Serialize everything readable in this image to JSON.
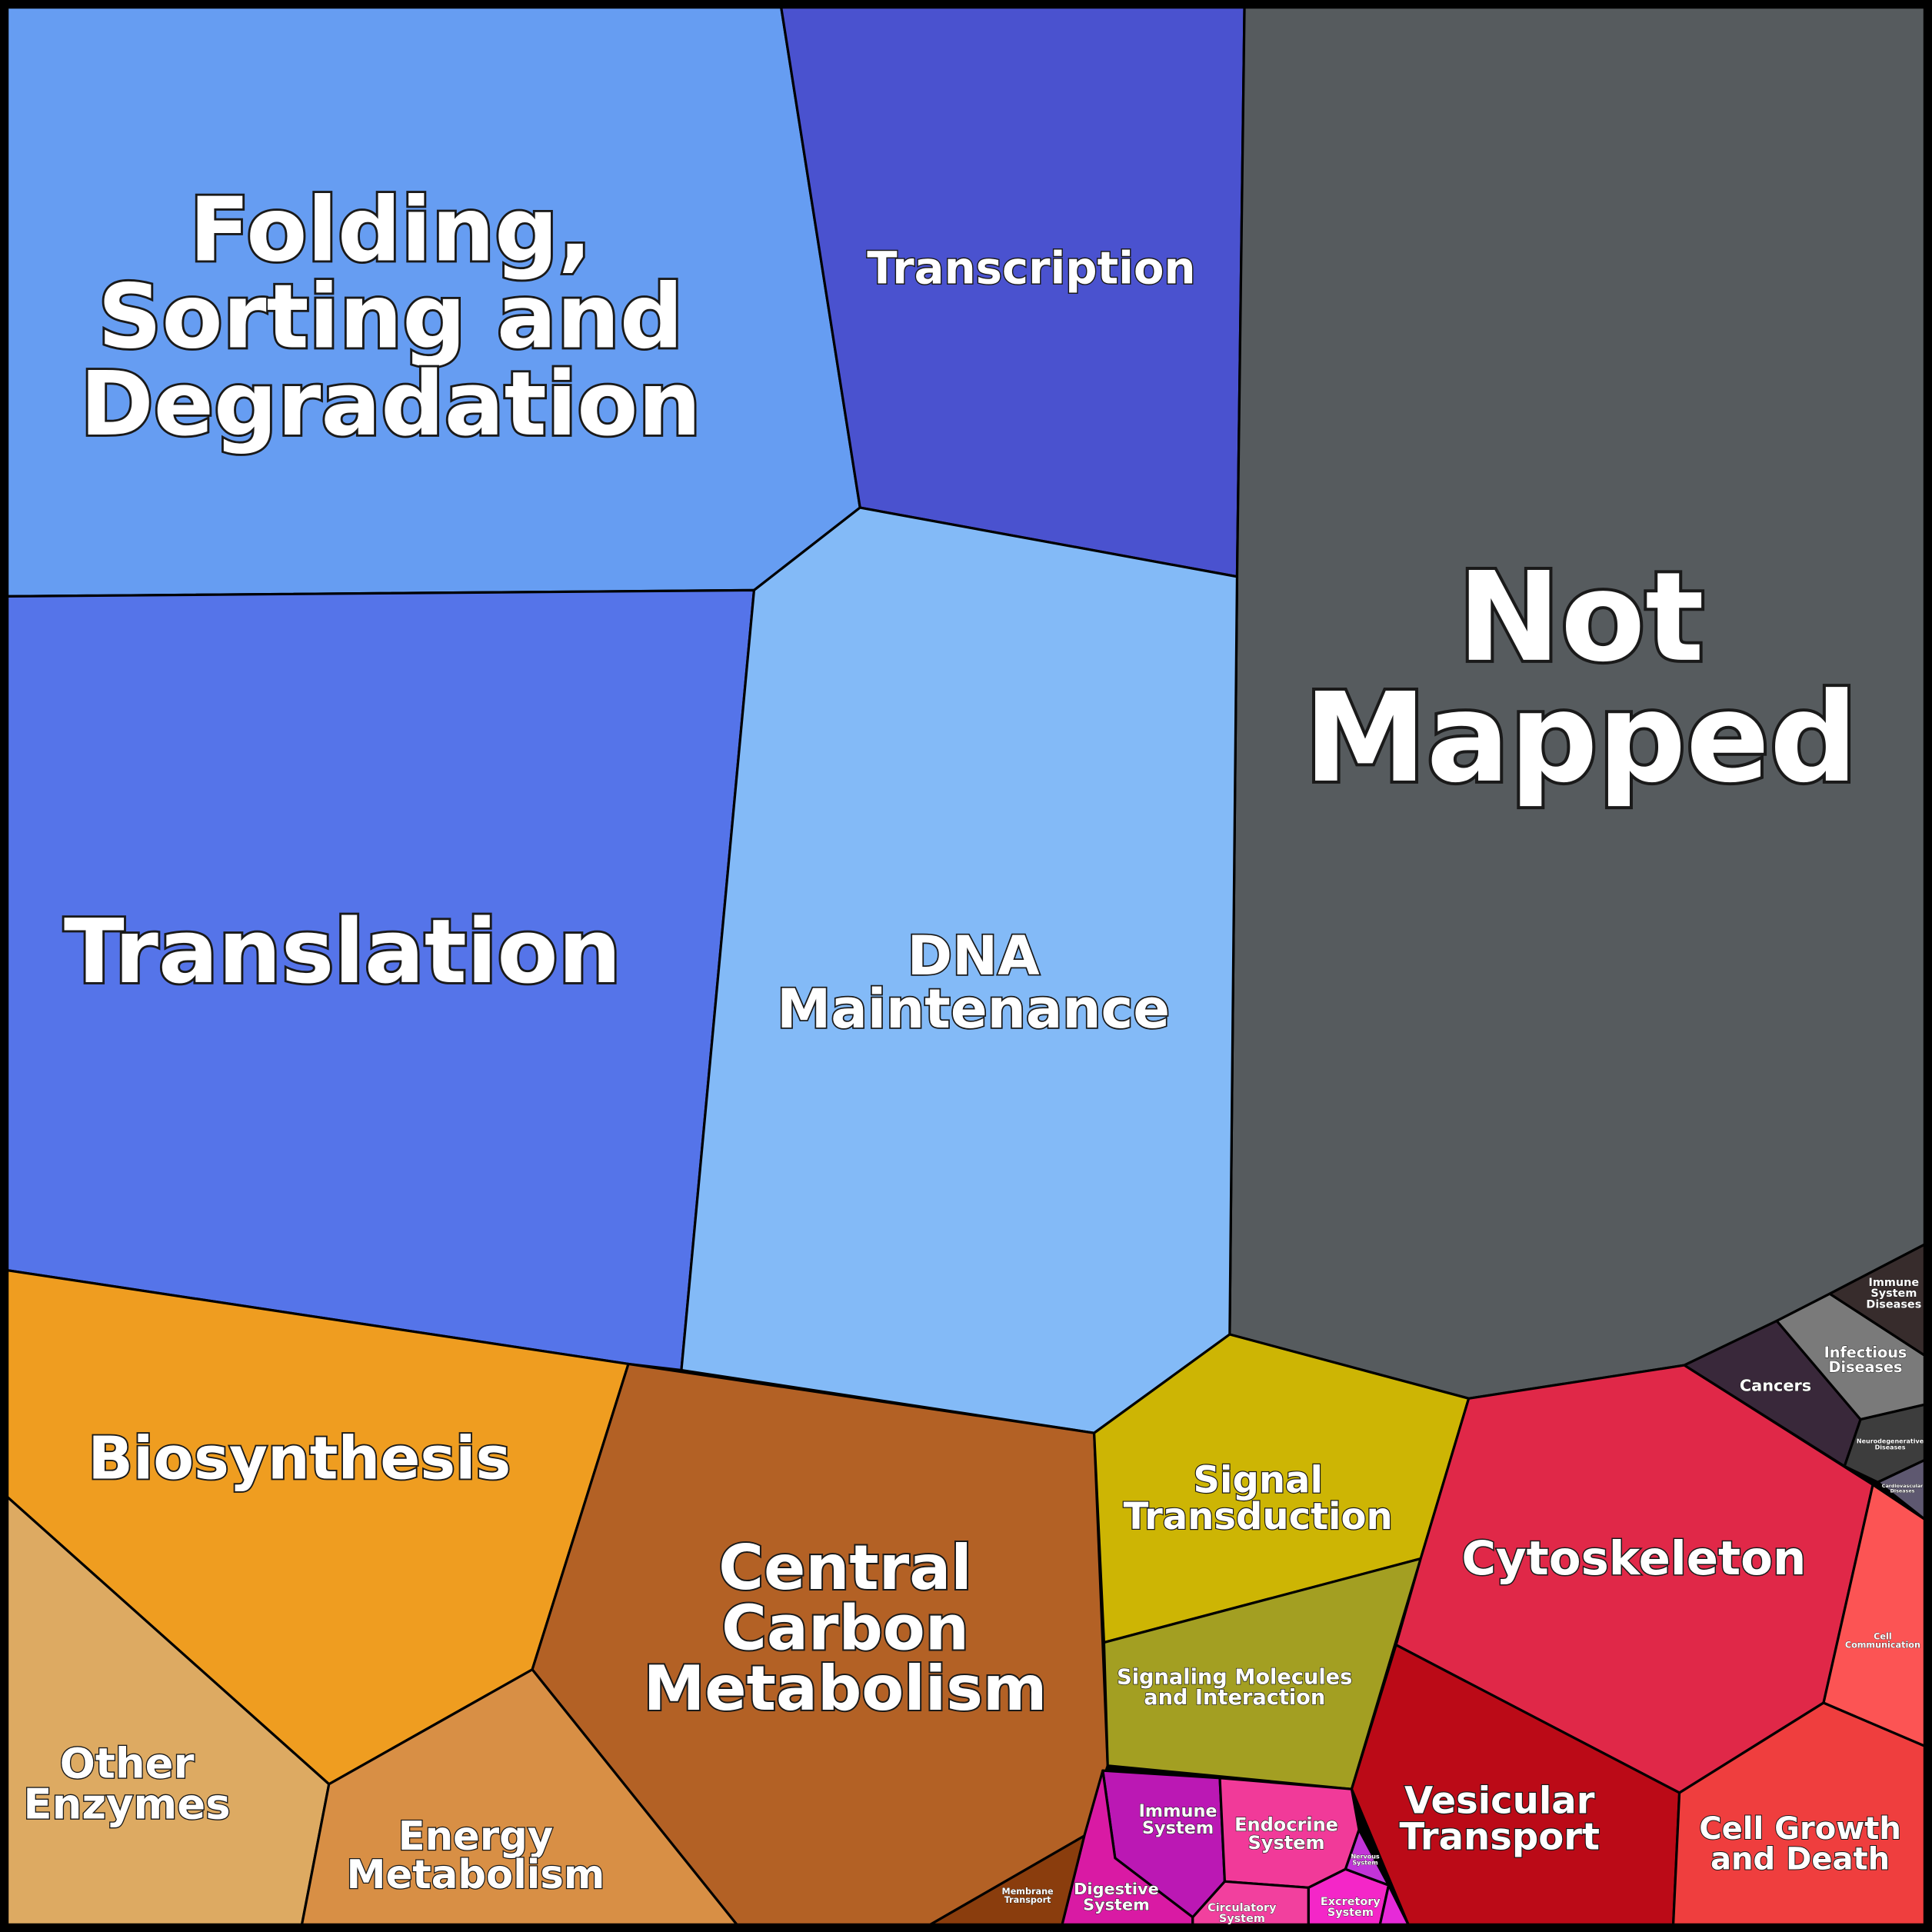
{
  "nodes": [
    {
      "label": [
        "Folding,",
        "Sorting and",
        "Degradation"
      ]
    },
    {
      "label": [
        "Transcription"
      ]
    },
    {
      "label": [
        "Not",
        "Mapped"
      ]
    },
    {
      "label": [
        "Translation"
      ]
    },
    {
      "label": [
        "DNA",
        "Maintenance"
      ]
    },
    {
      "label": [
        "Biosynthesis"
      ]
    },
    {
      "label": [
        "Central",
        "Carbon",
        "Metabolism"
      ]
    },
    {
      "label": [
        "Other",
        "Enzymes"
      ]
    },
    {
      "label": [
        "Energy",
        "Metabolism"
      ]
    },
    {
      "label": [
        "Signal",
        "Transduction"
      ]
    },
    {
      "label": [
        "Signaling Molecules",
        "and Interaction"
      ]
    },
    {
      "label": [
        "Cytoskeleton"
      ]
    },
    {
      "label": [
        "Vesicular",
        "Transport"
      ]
    },
    {
      "label": [
        "Cell Growth",
        "and Death"
      ]
    },
    {
      "label": [
        "Cell",
        "Communication"
      ]
    },
    {
      "label": [
        "Cancers"
      ]
    },
    {
      "label": [
        "Infectious",
        "Diseases"
      ]
    },
    {
      "label": [
        "Immune",
        "System",
        "Diseases"
      ]
    },
    {
      "label": [
        "Neurodegenerative",
        "Diseases"
      ]
    },
    {
      "label": [
        "Cardiovascular",
        "Diseases"
      ]
    },
    {
      "label": [
        "Immune",
        "System"
      ]
    },
    {
      "label": [
        "Endocrine",
        "System"
      ]
    },
    {
      "label": [
        "Digestive",
        "System"
      ]
    },
    {
      "label": [
        "Circulatory",
        "System"
      ]
    },
    {
      "label": [
        "Excretory",
        "System"
      ]
    },
    {
      "label": [
        "Nervous",
        "System"
      ]
    },
    {
      "label": [
        "Membrane",
        "Transport"
      ]
    }
  ]
}
